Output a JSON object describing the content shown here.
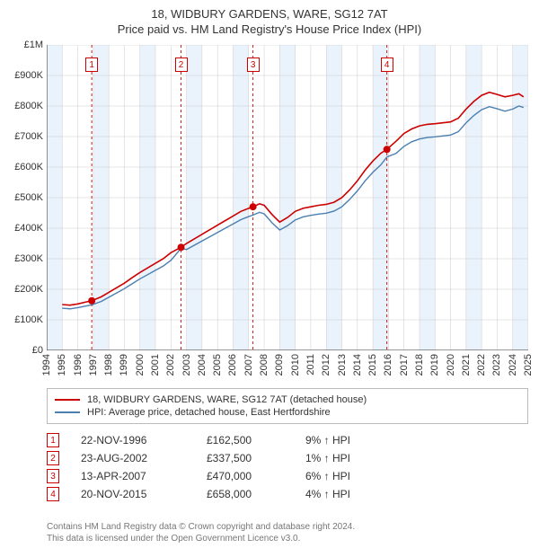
{
  "title": {
    "line1": "18, WIDBURY GARDENS, WARE, SG12 7AT",
    "line2": "Price paid vs. HM Land Registry's House Price Index (HPI)"
  },
  "chart": {
    "type": "line",
    "background_color": "#ffffff",
    "grid_color": "#cccccc",
    "x": {
      "min": 1994,
      "max": 2025,
      "tick_step": 1,
      "tick_color": "#333333",
      "label_fontsize": 11
    },
    "y": {
      "min": 0,
      "max": 1000000,
      "tick_step": 100000,
      "tick_labels": [
        "£0",
        "£100K",
        "£200K",
        "£300K",
        "£400K",
        "£500K",
        "£600K",
        "£700K",
        "£800K",
        "£900K",
        "£1M"
      ],
      "tick_color": "#333333",
      "label_fontsize": 11
    },
    "band_color": "#eaf2fb",
    "bands": [
      [
        1994,
        1995
      ],
      [
        1997,
        1998
      ],
      [
        2000,
        2001
      ],
      [
        2003,
        2004
      ],
      [
        2006,
        2007
      ],
      [
        2009,
        2010
      ],
      [
        2012,
        2013
      ],
      [
        2015,
        2016
      ],
      [
        2018,
        2019
      ],
      [
        2021,
        2022
      ],
      [
        2024,
        2025
      ]
    ],
    "event_marker": {
      "line_color": "#cc0000",
      "dash": "3,3",
      "box_border": "#cc0000",
      "box_bg": "#ffffff",
      "box_text": "#cc0000"
    },
    "events": [
      {
        "n": "1",
        "year": 1996.9,
        "date": "22-NOV-1996",
        "price_label": "£162,500",
        "price": 162500,
        "pct": "9% ↑ HPI"
      },
      {
        "n": "2",
        "year": 2002.65,
        "date": "23-AUG-2002",
        "price_label": "£337,500",
        "price": 337500,
        "pct": "1% ↑ HPI"
      },
      {
        "n": "3",
        "year": 2007.28,
        "date": "13-APR-2007",
        "price_label": "£470,000",
        "price": 470000,
        "pct": "6% ↑ HPI"
      },
      {
        "n": "4",
        "year": 2015.9,
        "date": "20-NOV-2015",
        "price_label": "£658,000",
        "price": 658000,
        "pct": "4% ↑ HPI"
      }
    ],
    "series": [
      {
        "id": "subject",
        "label": "18, WIDBURY GARDENS, WARE, SG12 7AT (detached house)",
        "color": "#cc0000",
        "line_width": 1.6,
        "marker_color": "#cc0000",
        "markers_at_events": true,
        "points": [
          [
            1995.0,
            150000
          ],
          [
            1995.5,
            148000
          ],
          [
            1996.0,
            152000
          ],
          [
            1996.5,
            158000
          ],
          [
            1996.9,
            162500
          ],
          [
            1997.5,
            175000
          ],
          [
            1998.0,
            190000
          ],
          [
            1998.5,
            205000
          ],
          [
            1999.0,
            220000
          ],
          [
            1999.5,
            238000
          ],
          [
            2000.0,
            255000
          ],
          [
            2000.5,
            270000
          ],
          [
            2001.0,
            285000
          ],
          [
            2001.5,
            300000
          ],
          [
            2002.0,
            320000
          ],
          [
            2002.65,
            337500
          ],
          [
            2003.0,
            350000
          ],
          [
            2003.5,
            365000
          ],
          [
            2004.0,
            380000
          ],
          [
            2004.5,
            395000
          ],
          [
            2005.0,
            410000
          ],
          [
            2005.5,
            425000
          ],
          [
            2006.0,
            440000
          ],
          [
            2006.5,
            455000
          ],
          [
            2007.0,
            465000
          ],
          [
            2007.28,
            470000
          ],
          [
            2007.7,
            480000
          ],
          [
            2008.0,
            475000
          ],
          [
            2008.5,
            445000
          ],
          [
            2009.0,
            420000
          ],
          [
            2009.5,
            435000
          ],
          [
            2010.0,
            455000
          ],
          [
            2010.5,
            465000
          ],
          [
            2011.0,
            470000
          ],
          [
            2011.5,
            475000
          ],
          [
            2012.0,
            478000
          ],
          [
            2012.5,
            485000
          ],
          [
            2013.0,
            500000
          ],
          [
            2013.5,
            525000
          ],
          [
            2014.0,
            555000
          ],
          [
            2014.5,
            590000
          ],
          [
            2015.0,
            620000
          ],
          [
            2015.5,
            645000
          ],
          [
            2015.9,
            658000
          ],
          [
            2016.5,
            685000
          ],
          [
            2017.0,
            710000
          ],
          [
            2017.5,
            725000
          ],
          [
            2018.0,
            735000
          ],
          [
            2018.5,
            740000
          ],
          [
            2019.0,
            742000
          ],
          [
            2019.5,
            745000
          ],
          [
            2020.0,
            748000
          ],
          [
            2020.5,
            760000
          ],
          [
            2021.0,
            790000
          ],
          [
            2021.5,
            815000
          ],
          [
            2022.0,
            835000
          ],
          [
            2022.5,
            845000
          ],
          [
            2023.0,
            838000
          ],
          [
            2023.5,
            830000
          ],
          [
            2024.0,
            835000
          ],
          [
            2024.4,
            840000
          ],
          [
            2024.7,
            830000
          ]
        ]
      },
      {
        "id": "hpi",
        "label": "HPI: Average price, detached house, East Hertfordshire",
        "color": "#4a7fb0",
        "line_width": 1.4,
        "points": [
          [
            1995.0,
            138000
          ],
          [
            1995.5,
            136000
          ],
          [
            1996.0,
            140000
          ],
          [
            1996.5,
            145000
          ],
          [
            1996.9,
            149000
          ],
          [
            1997.5,
            160000
          ],
          [
            1998.0,
            174000
          ],
          [
            1998.5,
            188000
          ],
          [
            1999.0,
            202000
          ],
          [
            1999.5,
            218000
          ],
          [
            2000.0,
            234000
          ],
          [
            2000.5,
            248000
          ],
          [
            2001.0,
            262000
          ],
          [
            2001.5,
            276000
          ],
          [
            2002.0,
            295000
          ],
          [
            2002.65,
            334000
          ],
          [
            2003.0,
            330000
          ],
          [
            2003.5,
            344000
          ],
          [
            2004.0,
            358000
          ],
          [
            2004.5,
            372000
          ],
          [
            2005.0,
            386000
          ],
          [
            2005.5,
            400000
          ],
          [
            2006.0,
            414000
          ],
          [
            2006.5,
            428000
          ],
          [
            2007.0,
            438000
          ],
          [
            2007.28,
            443000
          ],
          [
            2007.7,
            452000
          ],
          [
            2008.0,
            447000
          ],
          [
            2008.5,
            418000
          ],
          [
            2009.0,
            394000
          ],
          [
            2009.5,
            408000
          ],
          [
            2010.0,
            427000
          ],
          [
            2010.5,
            437000
          ],
          [
            2011.0,
            442000
          ],
          [
            2011.5,
            446000
          ],
          [
            2012.0,
            449000
          ],
          [
            2012.5,
            456000
          ],
          [
            2013.0,
            470000
          ],
          [
            2013.5,
            494000
          ],
          [
            2014.0,
            522000
          ],
          [
            2014.5,
            555000
          ],
          [
            2015.0,
            583000
          ],
          [
            2015.5,
            607000
          ],
          [
            2015.9,
            633000
          ],
          [
            2016.5,
            645000
          ],
          [
            2017.0,
            668000
          ],
          [
            2017.5,
            683000
          ],
          [
            2018.0,
            692000
          ],
          [
            2018.5,
            697000
          ],
          [
            2019.0,
            699000
          ],
          [
            2019.5,
            702000
          ],
          [
            2020.0,
            705000
          ],
          [
            2020.5,
            716000
          ],
          [
            2021.0,
            745000
          ],
          [
            2021.5,
            769000
          ],
          [
            2022.0,
            788000
          ],
          [
            2022.5,
            798000
          ],
          [
            2023.0,
            791000
          ],
          [
            2023.5,
            783000
          ],
          [
            2024.0,
            790000
          ],
          [
            2024.4,
            800000
          ],
          [
            2024.7,
            795000
          ]
        ]
      }
    ]
  },
  "legend": {
    "border_color": "#bbbbbb"
  },
  "footer": {
    "line1": "Contains HM Land Registry data © Crown copyright and database right 2024.",
    "line2": "This data is licensed under the Open Government Licence v3.0."
  }
}
